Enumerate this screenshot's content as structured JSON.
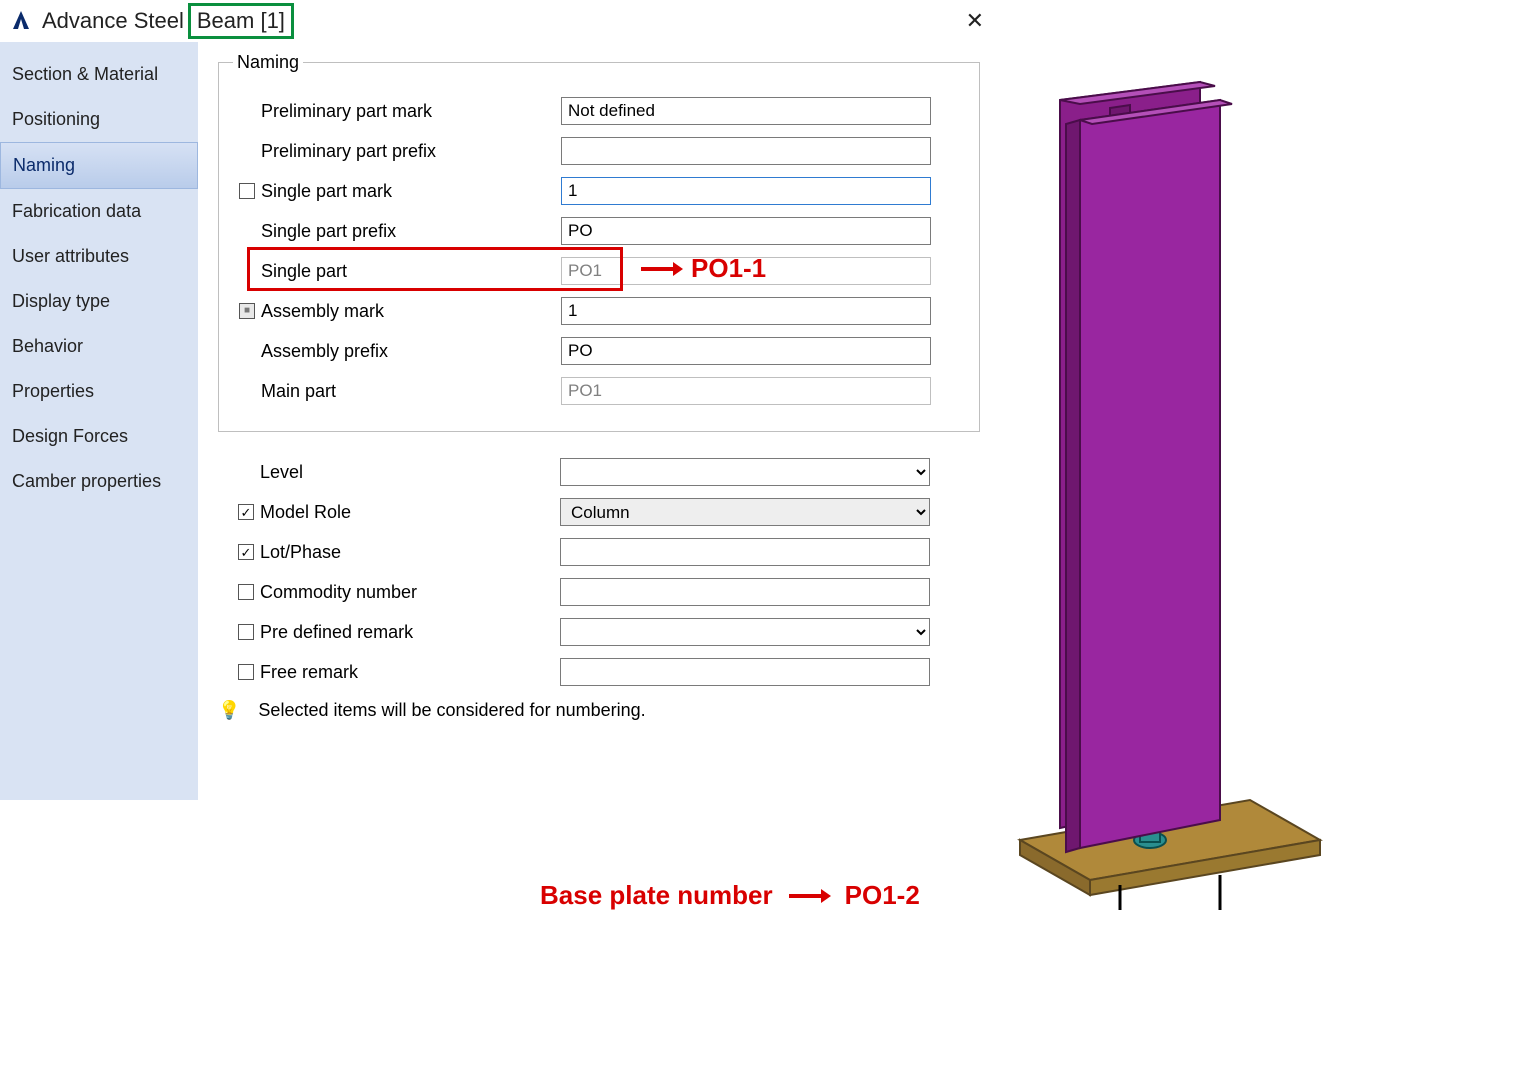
{
  "title": {
    "app": "Advance Steel",
    "object": "Beam [1]"
  },
  "sidebar": {
    "items": [
      "Section & Material",
      "Positioning",
      "Naming",
      "Fabrication data",
      "User attributes",
      "Display type",
      "Behavior",
      "Properties",
      "Design Forces",
      "Camber properties"
    ],
    "selected_index": 2
  },
  "naming": {
    "legend": "Naming",
    "rows": [
      {
        "label": "Preliminary part mark",
        "value": "Not defined",
        "checkbox": null,
        "readonly": false
      },
      {
        "label": "Preliminary part prefix",
        "value": "",
        "checkbox": null,
        "readonly": false
      },
      {
        "label": "Single part mark",
        "value": "1",
        "checkbox": "unchecked",
        "readonly": false,
        "focused": true
      },
      {
        "label": "Single part prefix",
        "value": "PO",
        "checkbox": null,
        "readonly": false
      },
      {
        "label": "Single part",
        "value": "PO1",
        "checkbox": null,
        "readonly": true
      },
      {
        "label": "Assembly mark",
        "value": "1",
        "checkbox": "mixed",
        "readonly": false
      },
      {
        "label": "Assembly prefix",
        "value": "PO",
        "checkbox": null,
        "readonly": false
      },
      {
        "label": "Main part",
        "value": "PO1",
        "checkbox": null,
        "readonly": true
      }
    ]
  },
  "lower": {
    "rows": [
      {
        "label": "Level",
        "checkbox": null,
        "type": "select",
        "value": ""
      },
      {
        "label": "Model Role",
        "checkbox": "checked",
        "type": "select",
        "value": "Column",
        "filled": true
      },
      {
        "label": "Lot/Phase",
        "checkbox": "checked",
        "type": "text",
        "value": ""
      },
      {
        "label": "Commodity number",
        "checkbox": "unchecked",
        "type": "text",
        "value": ""
      },
      {
        "label": "Pre defined remark",
        "checkbox": "unchecked",
        "type": "select",
        "value": ""
      },
      {
        "label": "Free remark",
        "checkbox": "unchecked",
        "type": "text",
        "value": ""
      }
    ],
    "hint": "Selected items will be considered for numbering."
  },
  "annotations": {
    "title_box_color": "#0a8f3e",
    "single_part_box_color": "#d80000",
    "single_part_arrow_text": "PO1-1",
    "base_plate_label": "Base plate number",
    "base_plate_value": "PO1-2"
  },
  "beam_render": {
    "flange_color": "#8a1f8a",
    "flange_edge": "#4a0d4a",
    "plate_color": "#b0893a",
    "plate_edge": "#5a4620",
    "bolt_color": "#2a8f8f"
  }
}
